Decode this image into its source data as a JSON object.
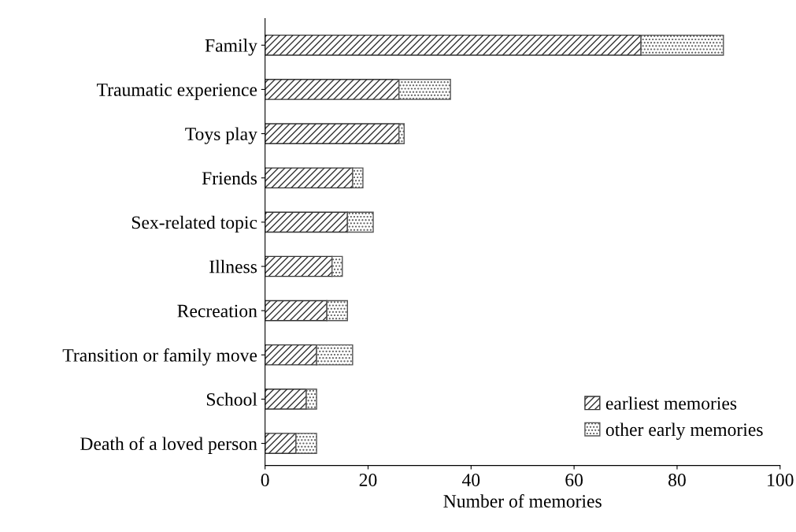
{
  "chart_data": {
    "type": "bar",
    "orientation": "horizontal",
    "stacked": true,
    "xlabel": "Number of memories",
    "categories": [
      "Family",
      "Traumatic experience",
      "Toys play",
      "Friends",
      "Sex-related topic",
      "Illness",
      "Recreation",
      "Transition or family move",
      "School",
      "Death of a loved person"
    ],
    "series": [
      {
        "name": "earliest memories",
        "color": "#333333",
        "values": [
          73,
          26,
          26,
          17,
          16,
          13,
          12,
          10,
          8,
          6
        ]
      },
      {
        "name": "other early memories",
        "color": "#555555",
        "values": [
          16,
          10,
          1,
          2,
          5,
          2,
          4,
          7,
          2,
          4
        ]
      }
    ],
    "xlim": [
      0,
      100
    ],
    "xticks": [
      0,
      20,
      40,
      60,
      80,
      100
    ],
    "grid": false,
    "legend": "bottom right"
  }
}
